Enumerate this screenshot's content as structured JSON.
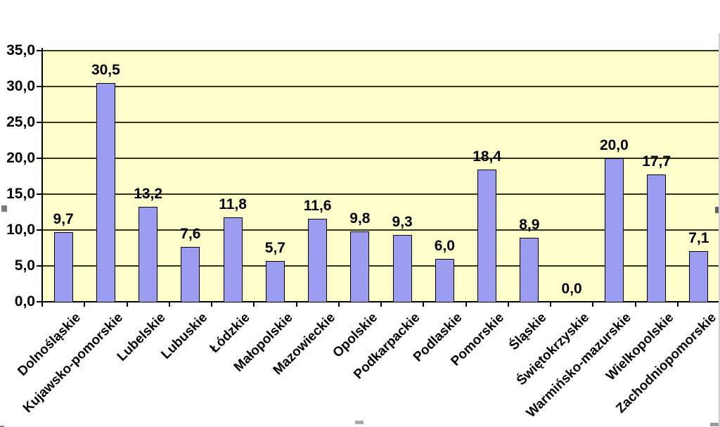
{
  "chart_data": {
    "type": "bar",
    "title": "",
    "xlabel": "",
    "ylabel": "",
    "categories": [
      "Dolnośląskie",
      "Kujawsko-pomorskie",
      "Lubelskie",
      "Lubuskie",
      "Łódzkie",
      "Małopolskie",
      "Mazowieckie",
      "Opolskie",
      "Podkarpackie",
      "Podlaskie",
      "Pomorskie",
      "Śląskie",
      "Świętokrzyskie",
      "Warmińsko-mazurskie",
      "Wielkopolskie",
      "Zachodniopomorskie"
    ],
    "values": [
      9.7,
      30.5,
      13.2,
      7.6,
      11.8,
      5.7,
      11.6,
      9.8,
      9.3,
      6.0,
      18.4,
      8.9,
      0.0,
      20.0,
      17.7,
      7.1
    ],
    "value_labels": [
      "9,7",
      "30,5",
      "13,2",
      "7,6",
      "11,8",
      "5,7",
      "11,6",
      "9,8",
      "9,3",
      "6,0",
      "18,4",
      "8,9",
      "0,0",
      "20,0",
      "17,7",
      "7,1"
    ],
    "ylim": [
      0,
      35
    ],
    "ytick_step": 5,
    "ytick_labels": [
      "0,0",
      "5,0",
      "10,0",
      "15,0",
      "20,0",
      "25,0",
      "30,0",
      "35,0"
    ],
    "grid": true,
    "legend_position": "none",
    "decimal_separator": ",",
    "colors": {
      "bar_fill": "#9C9CF0",
      "bar_border": "#000000",
      "plot_bg": "#FFFFCC",
      "gridline": "#33331F",
      "axis": "#000000",
      "text": "#000000",
      "page_bg": "#FFFFFF",
      "selection_handle": "#808080"
    }
  }
}
